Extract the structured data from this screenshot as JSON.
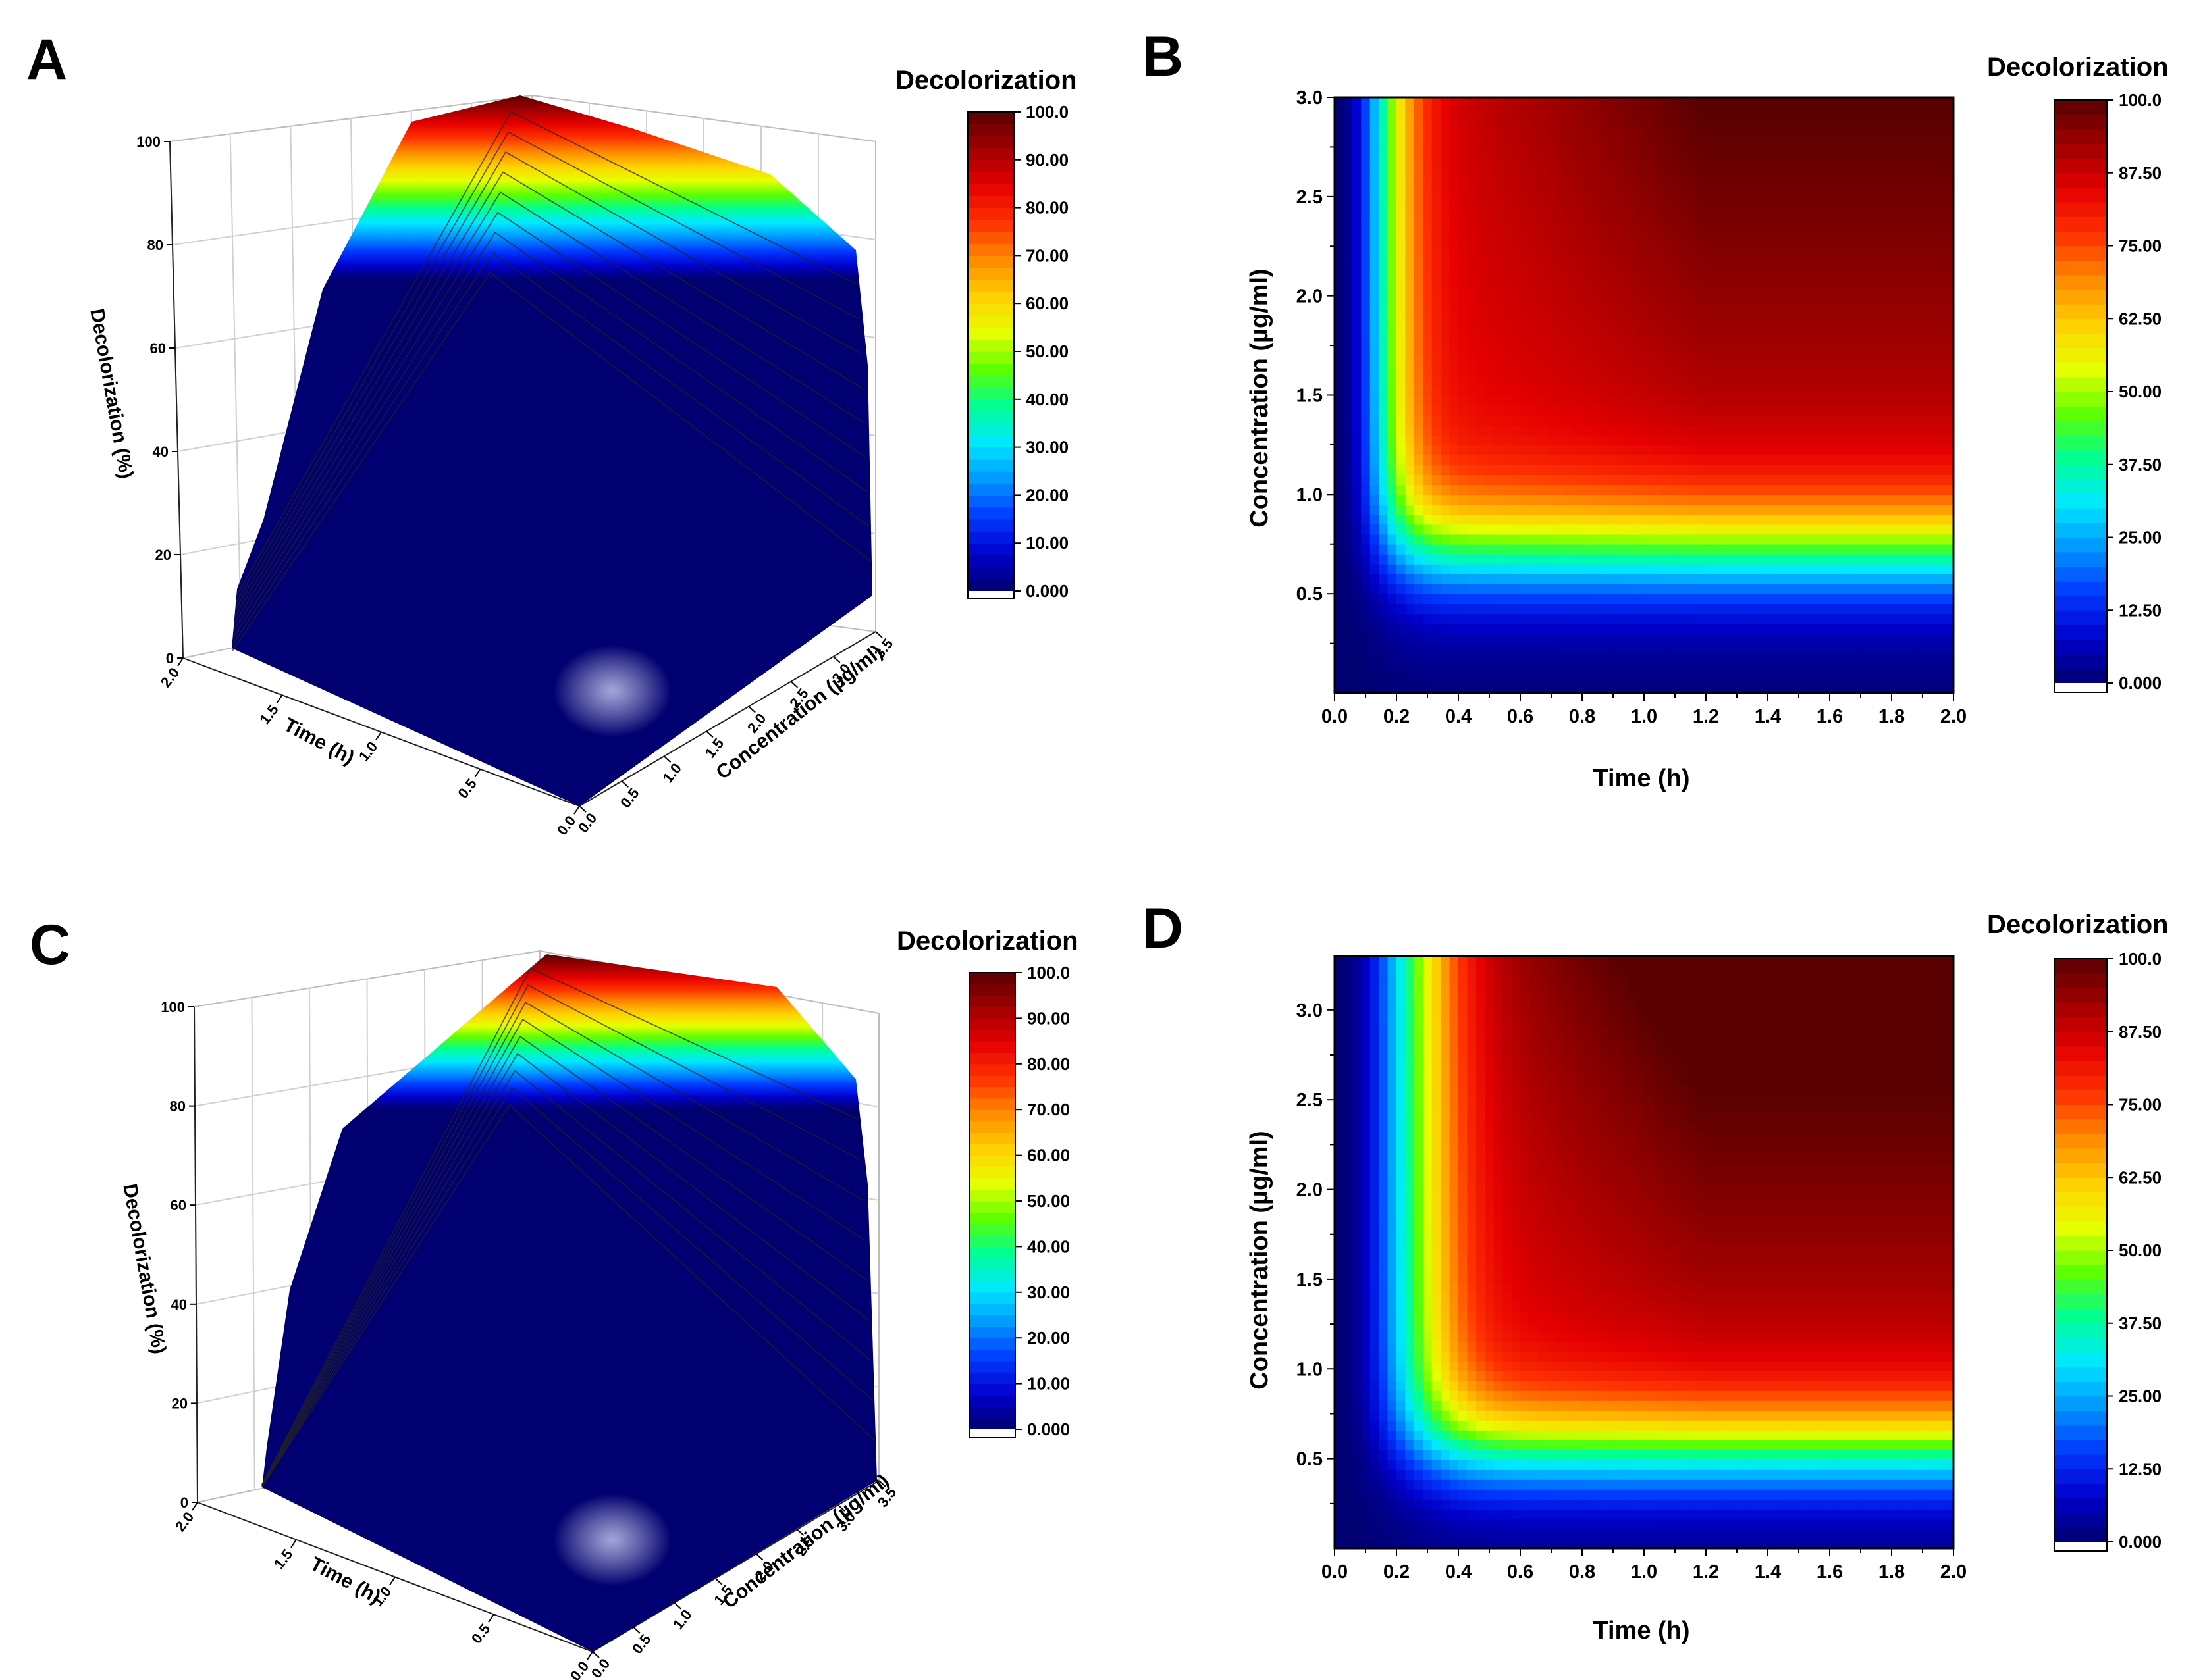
{
  "palette": [
    "#000070",
    "#0000cc",
    "#0038ff",
    "#0096ff",
    "#00e8ff",
    "#00ff96",
    "#5cff00",
    "#e6ff00",
    "#ffd000",
    "#ff8a00",
    "#ff3200",
    "#e60000",
    "#a00000",
    "#5a0000"
  ],
  "chart_data": [
    {
      "panel": "A",
      "type": "surface3d",
      "zlabel": "Decolorization (%)",
      "xlabel": "Time (h)",
      "ylabel": "Concentration (µg/ml)",
      "z_ticks": [
        "0",
        "20",
        "40",
        "60",
        "80",
        "100"
      ],
      "x_ticks": [
        "0.0",
        "0.5",
        "1.0",
        "1.5",
        "2.0"
      ],
      "y_ticks": [
        "0.0",
        "0.5",
        "1.0",
        "1.5",
        "2.0",
        "2.5",
        "3.0",
        "3.5"
      ],
      "zlim": [
        0,
        100
      ],
      "surface_profile": [
        0,
        15,
        35,
        50,
        63,
        73,
        85,
        96,
        100
      ],
      "colorbar": {
        "title": "Decolorization",
        "ticks": [
          "100.0",
          "90.00",
          "80.00",
          "70.00",
          "60.00",
          "50.00",
          "40.00",
          "30.00",
          "20.00",
          "10.00",
          "0.000"
        ],
        "range": [
          0,
          100
        ]
      }
    },
    {
      "panel": "B",
      "type": "heatmap",
      "xlabel": "Time (h)",
      "ylabel": "Concentration (µg/ml)",
      "x_ticks": [
        "0.0",
        "0.2",
        "0.4",
        "0.6",
        "0.8",
        "1.0",
        "1.2",
        "1.4",
        "1.6",
        "1.8",
        "2.0"
      ],
      "y_ticks": [
        "0.5",
        "1.0",
        "1.5",
        "2.0",
        "2.5",
        "3.0"
      ],
      "xlim": [
        0,
        2.0
      ],
      "ylim": [
        0,
        3.0
      ],
      "model": {
        "t0": 0.2,
        "c0": 0.72,
        "cmax": 3.0,
        "gain": 0.26
      },
      "colorbar": {
        "title": "Decolorization",
        "ticks": [
          "100.0",
          "87.50",
          "75.00",
          "62.50",
          "50.00",
          "37.50",
          "25.00",
          "12.50",
          "0.000"
        ],
        "range": [
          0,
          100
        ]
      }
    },
    {
      "panel": "C",
      "type": "surface3d",
      "zlabel": "Decolorization (%)",
      "xlabel": "Time (h)",
      "ylabel": "Concentration (µg/ml)",
      "z_ticks": [
        "0",
        "20",
        "40",
        "60",
        "80",
        "100"
      ],
      "x_ticks": [
        "0.0",
        "0.5",
        "1.0",
        "1.5",
        "2.0"
      ],
      "y_ticks": [
        "0.0",
        "0.5",
        "1.0",
        "1.5",
        "2.0",
        "2.5",
        "3.0",
        "3.5"
      ],
      "zlim": [
        0,
        100
      ],
      "surface_profile": [
        0,
        18,
        38,
        55,
        68,
        78,
        88,
        97,
        100
      ],
      "colorbar": {
        "title": "Decolorization",
        "ticks": [
          "100.0",
          "90.00",
          "80.00",
          "70.00",
          "60.00",
          "50.00",
          "40.00",
          "30.00",
          "20.00",
          "10.00",
          "0.000"
        ],
        "range": [
          0,
          100
        ]
      }
    },
    {
      "panel": "D",
      "type": "heatmap",
      "xlabel": "Time (h)",
      "ylabel": "Concentration (µg/ml)",
      "x_ticks": [
        "0.0",
        "0.2",
        "0.4",
        "0.6",
        "0.8",
        "1.0",
        "1.2",
        "1.4",
        "1.6",
        "1.8",
        "2.0"
      ],
      "y_ticks": [
        "0.5",
        "1.0",
        "1.5",
        "2.0",
        "2.5",
        "3.0"
      ],
      "xlim": [
        0,
        2.0
      ],
      "ylim": [
        0,
        3.3
      ],
      "model": {
        "t0": 0.3,
        "c0": 0.55,
        "cmax": 3.3,
        "gain": 0.33
      },
      "colorbar": {
        "title": "Decolorization",
        "ticks": [
          "100.0",
          "87.50",
          "75.00",
          "62.50",
          "50.00",
          "37.50",
          "25.00",
          "12.50",
          "0.000"
        ],
        "range": [
          0,
          100
        ]
      }
    }
  ]
}
